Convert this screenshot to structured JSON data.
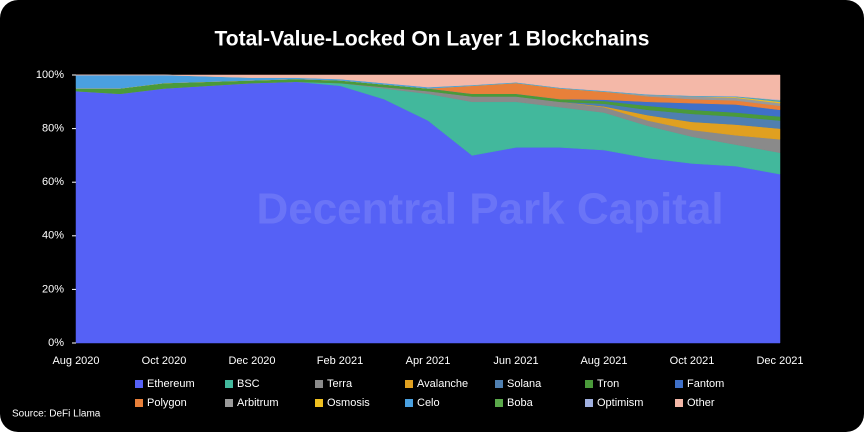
{
  "chart_data": {
    "type": "stacked_area",
    "title": "Total-Value-Locked On Layer 1 Blockchains",
    "watermark": "Decentral Park Capital",
    "source": "Source: DeFi Llama",
    "categories": [
      "Aug 2020",
      null,
      "Oct 2020",
      null,
      "Dec 2020",
      null,
      "Feb 2021",
      null,
      "Apr 2021",
      null,
      "Jun 2021",
      null,
      "Aug 2021",
      null,
      "Oct 2021",
      null,
      "Dec 2021"
    ],
    "ylim": [
      0,
      100
    ],
    "yticks": [
      {
        "value": 0,
        "label": "0%"
      },
      {
        "value": 20,
        "label": "20%"
      },
      {
        "value": 40,
        "label": "40%"
      },
      {
        "value": 60,
        "label": "60%"
      },
      {
        "value": 80,
        "label": "80%"
      },
      {
        "value": 100,
        "label": "100%"
      }
    ],
    "legend": "bottom",
    "series": [
      {
        "name": "Ethereum",
        "color": "#5561f6",
        "values": [
          94,
          93,
          95,
          96,
          97,
          97.5,
          96,
          91,
          83,
          70,
          73,
          73,
          72,
          69,
          67,
          66,
          63
        ]
      },
      {
        "name": "BSC",
        "color": "#42b89c",
        "values": [
          0,
          0,
          0,
          0,
          0,
          0,
          1,
          4,
          10,
          20,
          17,
          15,
          14,
          12,
          10,
          8,
          8
        ]
      },
      {
        "name": "Terra",
        "color": "#8a8a8a",
        "values": [
          0,
          0,
          0,
          0,
          0,
          0,
          0,
          0.5,
          1,
          2,
          2,
          2,
          2,
          2,
          2.5,
          3.5,
          5
        ]
      },
      {
        "name": "Avalanche",
        "color": "#e0a020",
        "values": [
          0,
          0,
          0,
          0,
          0,
          0,
          0,
          0,
          0,
          0,
          0,
          0,
          0.3,
          2,
          3,
          4,
          4
        ]
      },
      {
        "name": "Solana",
        "color": "#4f7fb0",
        "values": [
          0,
          0,
          0,
          0,
          0,
          0,
          0,
          0,
          0,
          0,
          0,
          0,
          1,
          2,
          3,
          3,
          3
        ]
      },
      {
        "name": "Tron",
        "color": "#4a9a3a",
        "values": [
          1,
          2,
          2,
          1.5,
          1,
          1,
          1,
          1,
          1,
          1,
          1,
          1,
          1,
          1.5,
          1.5,
          1.5,
          1.5
        ]
      },
      {
        "name": "Fantom",
        "color": "#3f70c8",
        "values": [
          0,
          0,
          0,
          0,
          0,
          0,
          0,
          0,
          0,
          0,
          0,
          0,
          0.5,
          1.5,
          2.5,
          3,
          2.5
        ]
      },
      {
        "name": "Polygon",
        "color": "#e8803a",
        "values": [
          0,
          0,
          0,
          0,
          0,
          0,
          0,
          0,
          0,
          3,
          4,
          4,
          3,
          2,
          1.5,
          1.5,
          1.5
        ]
      },
      {
        "name": "Arbitrum",
        "color": "#9a9a9a",
        "values": [
          0,
          0,
          0,
          0,
          0,
          0,
          0,
          0,
          0,
          0,
          0,
          0,
          0,
          0.5,
          1,
          1,
          1
        ]
      },
      {
        "name": "Osmosis",
        "color": "#f0c020",
        "values": [
          0,
          0,
          0,
          0,
          0,
          0,
          0,
          0,
          0,
          0,
          0,
          0,
          0,
          0,
          0,
          0.3,
          0.5
        ]
      },
      {
        "name": "Celo",
        "color": "#4aa0e0",
        "values": [
          5,
          5,
          3,
          2,
          1,
          0.5,
          0.5,
          0.5,
          0.5,
          0.3,
          0.3,
          0.3,
          0.3,
          0.3,
          0.3,
          0.3,
          0.3
        ]
      },
      {
        "name": "Boba",
        "color": "#5aa84a",
        "values": [
          0,
          0,
          0,
          0,
          0,
          0,
          0,
          0,
          0,
          0,
          0,
          0,
          0,
          0,
          0,
          0,
          0.2
        ]
      },
      {
        "name": "Optimism",
        "color": "#a0b0e0",
        "values": [
          0,
          0,
          0,
          0,
          0,
          0,
          0,
          0,
          0,
          0,
          0,
          0,
          0,
          0,
          0,
          0,
          0.3
        ]
      },
      {
        "name": "Other",
        "color": "#f4b8a8",
        "values": [
          0,
          0,
          0,
          0.5,
          1,
          1,
          1.5,
          3,
          4.5,
          3.7,
          2.7,
          4.7,
          5.9,
          7.2,
          7.7,
          7.9,
          9.2
        ]
      }
    ]
  }
}
